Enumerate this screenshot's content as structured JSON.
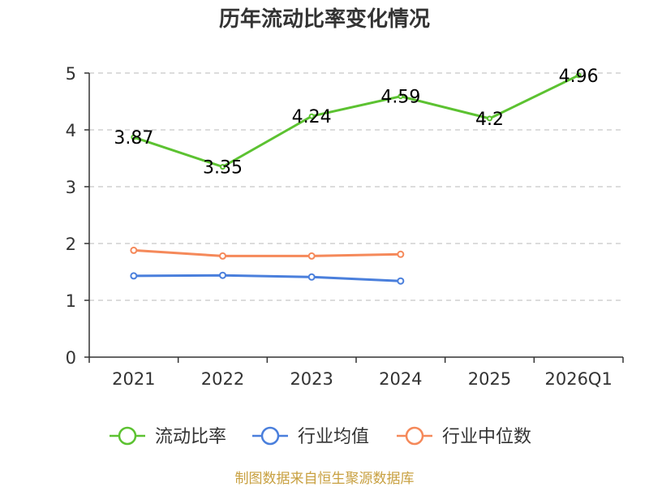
{
  "chart_data": {
    "type": "line",
    "title": "历年流动比率变化情况",
    "categories": [
      "2021",
      "2022",
      "2023",
      "2024",
      "2025",
      "2026Q1"
    ],
    "ylim": [
      0,
      5
    ],
    "yticks": [
      0,
      1,
      2,
      3,
      4,
      5
    ],
    "grid": true,
    "legend_position": "bottom",
    "series": [
      {
        "name": "流动比率",
        "color": "#5cc231",
        "values": [
          3.87,
          3.35,
          4.24,
          4.59,
          4.2,
          4.96
        ],
        "labels": [
          "3.87",
          "3.35",
          "4.24",
          "4.59",
          "4.2",
          "4.96"
        ],
        "show_labels": true,
        "marker": "small"
      },
      {
        "name": "行业均值",
        "color": "#4a7fdc",
        "values": [
          1.43,
          1.44,
          1.41,
          1.34,
          null,
          null
        ],
        "show_labels": false,
        "marker": "circle"
      },
      {
        "name": "行业中位数",
        "color": "#f5895a",
        "values": [
          1.88,
          1.78,
          1.78,
          1.81,
          null,
          null
        ],
        "show_labels": false,
        "marker": "circle"
      }
    ],
    "source": "制图数据来自恒生聚源数据库"
  }
}
